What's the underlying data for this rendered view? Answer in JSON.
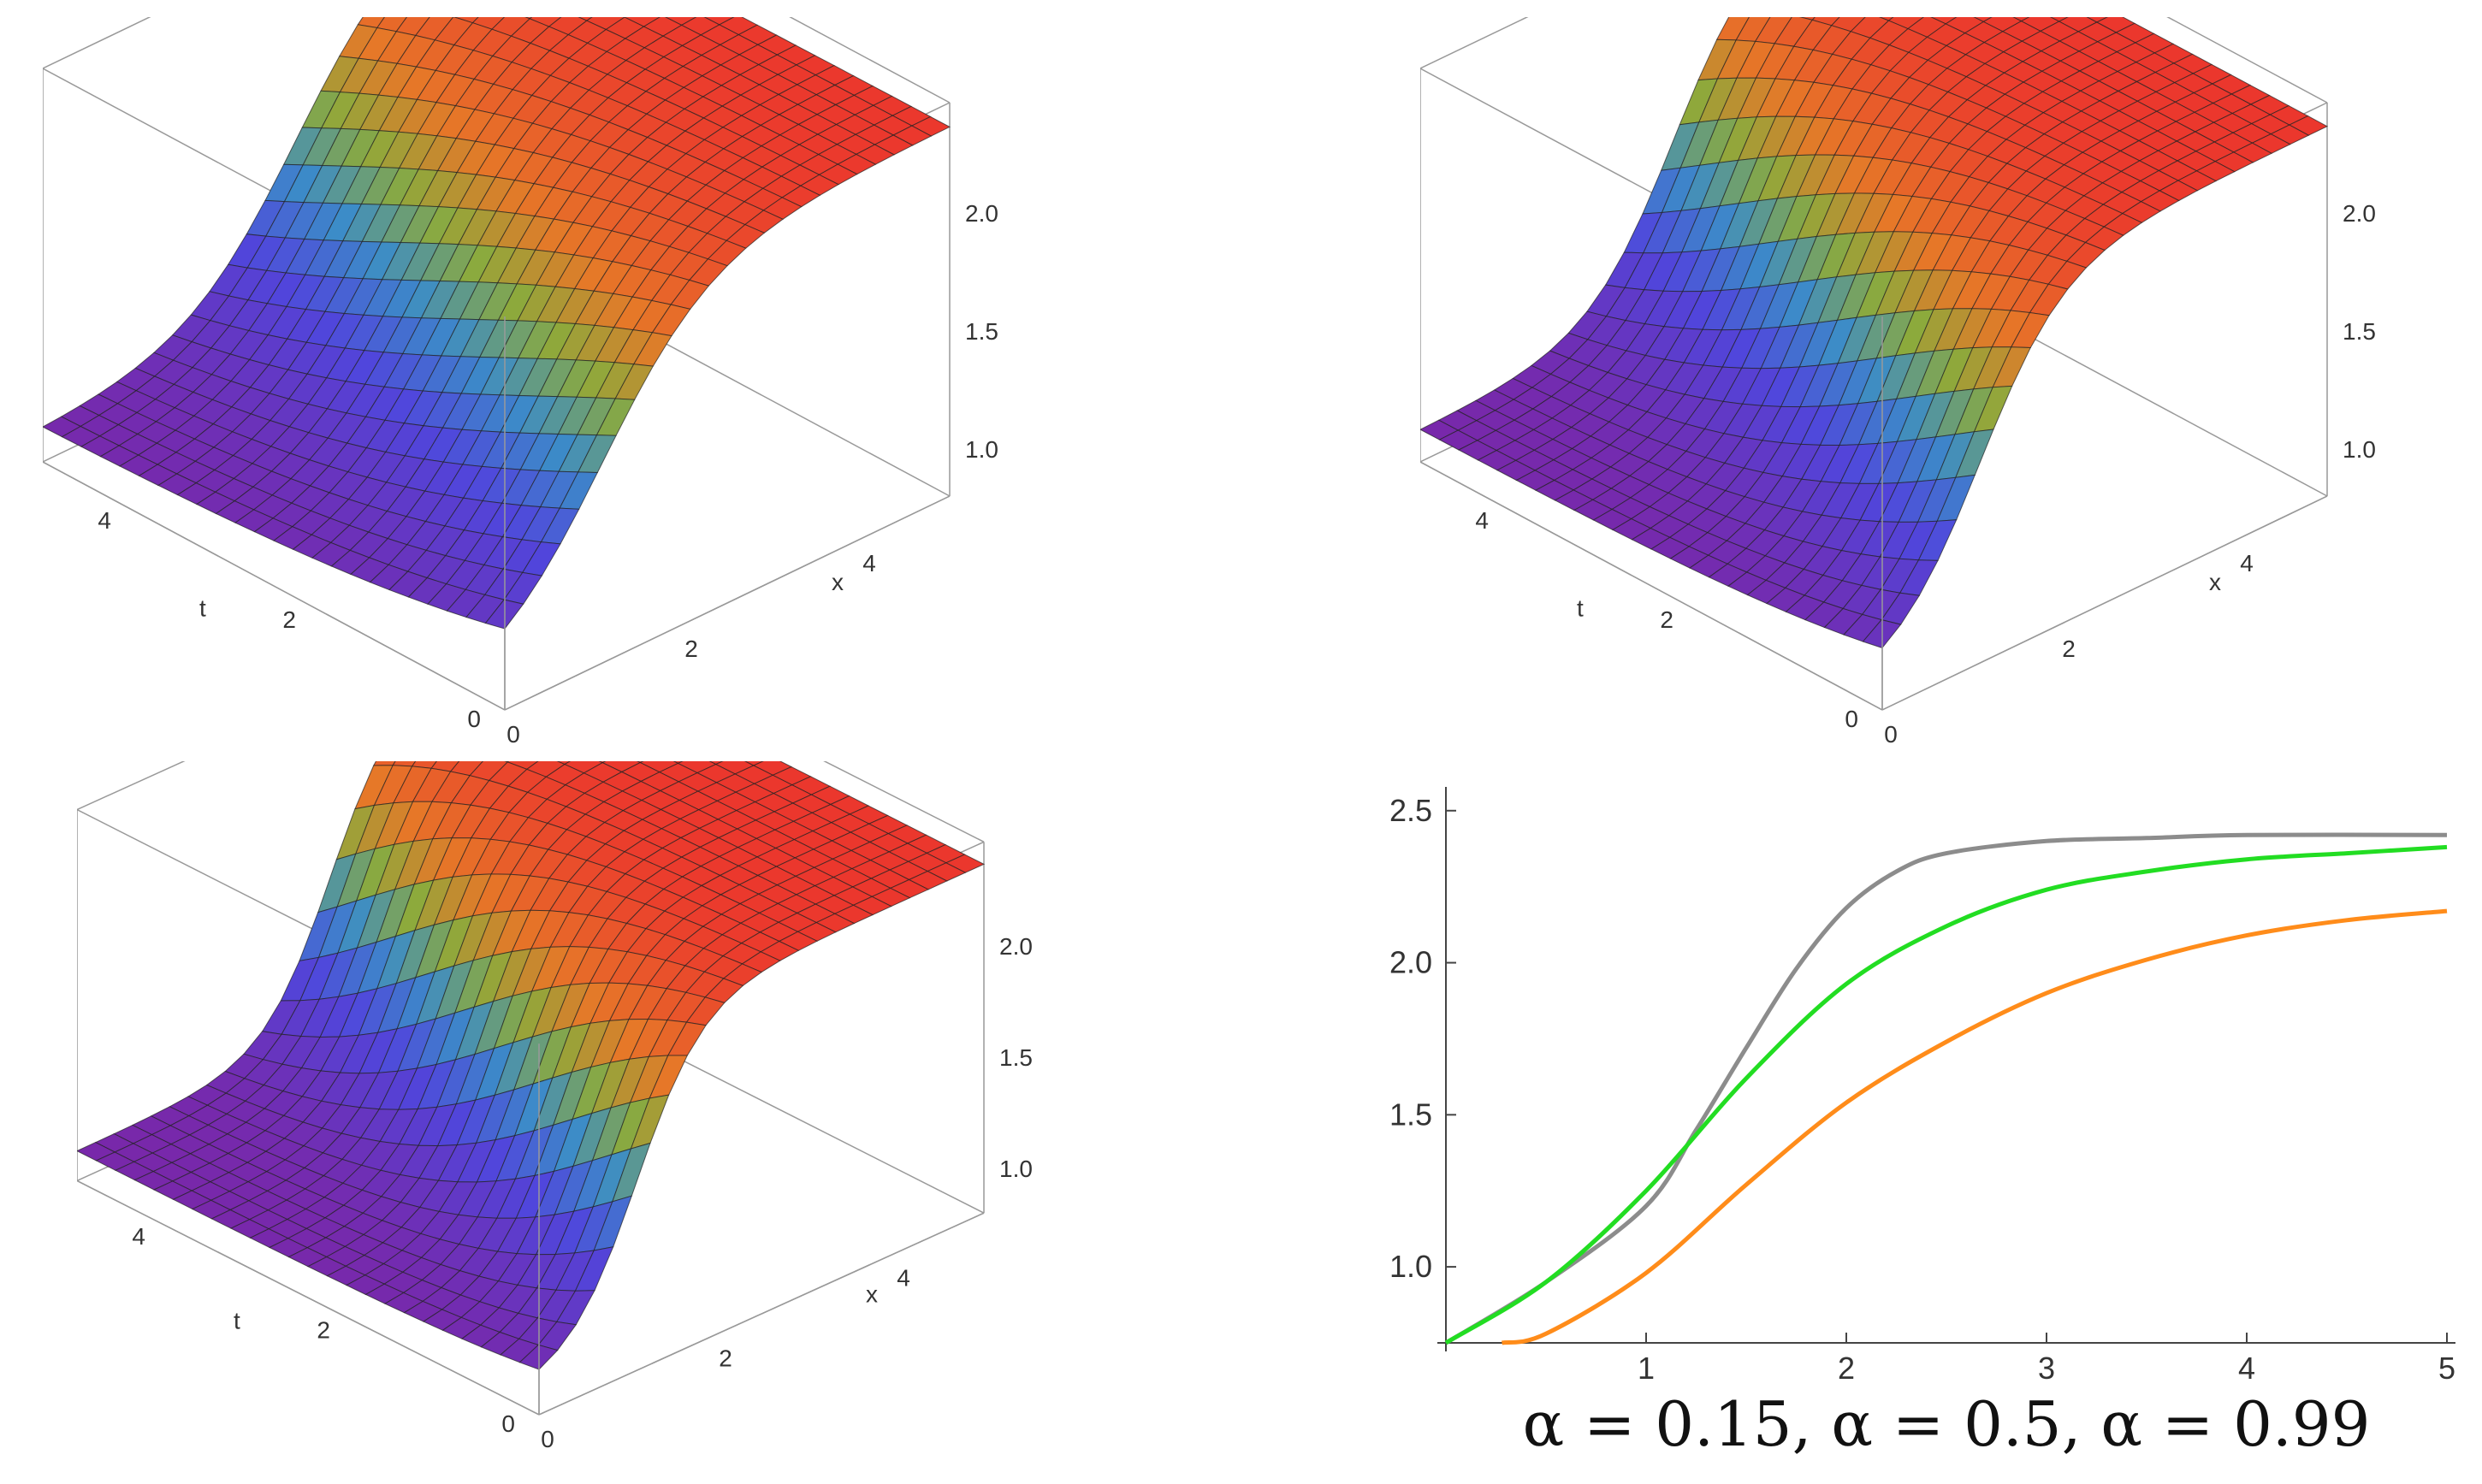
{
  "surfaces": [
    {
      "id": "top-left",
      "x_ticks": [
        "0",
        "2",
        "4"
      ],
      "t_ticks": [
        "0",
        "2",
        "4"
      ],
      "z_ticks": [
        "1.0",
        "1.5",
        "2.0"
      ],
      "x_label": "x",
      "t_label": "t"
    },
    {
      "id": "top-right",
      "x_ticks": [
        "0",
        "2",
        "4"
      ],
      "t_ticks": [
        "0",
        "2",
        "4"
      ],
      "z_ticks": [
        "1.0",
        "1.5",
        "2.0"
      ],
      "x_label": "x",
      "t_label": "t"
    },
    {
      "id": "bottom-left",
      "x_ticks": [
        "0",
        "2",
        "4"
      ],
      "t_ticks": [
        "0",
        "2",
        "4"
      ],
      "z_ticks": [
        "1.0",
        "1.5",
        "2.0"
      ],
      "x_label": "x",
      "t_label": "t"
    }
  ],
  "chart_data": {
    "type": "line",
    "x_ticks": [
      "1",
      "2",
      "3",
      "4",
      "5"
    ],
    "y_ticks": [
      "1.0",
      "1.5",
      "2.0",
      "2.5"
    ],
    "xlim": [
      0,
      5
    ],
    "ylim": [
      0.75,
      2.55
    ],
    "series": [
      {
        "color": "#8c8c8c",
        "x": [
          0,
          0.5,
          1.0,
          1.25,
          1.5,
          1.75,
          2.0,
          2.25,
          2.5,
          3.0,
          3.5,
          4.0,
          5.0
        ],
        "y": [
          0.75,
          0.95,
          1.2,
          1.45,
          1.72,
          1.98,
          2.18,
          2.3,
          2.36,
          2.4,
          2.41,
          2.42,
          2.42
        ]
      },
      {
        "color": "#22dd22",
        "x": [
          0,
          0.5,
          1.0,
          1.5,
          2.0,
          2.5,
          3.0,
          3.5,
          4.0,
          4.5,
          5.0
        ],
        "y": [
          0.75,
          0.95,
          1.25,
          1.62,
          1.93,
          2.12,
          2.24,
          2.3,
          2.34,
          2.36,
          2.38
        ]
      },
      {
        "color": "#ff8c1a",
        "x": [
          0.28,
          0.5,
          1.0,
          1.5,
          2.0,
          2.5,
          3.0,
          3.5,
          4.0,
          4.5,
          5.0
        ],
        "y": [
          0.75,
          0.78,
          0.98,
          1.27,
          1.54,
          1.74,
          1.9,
          2.01,
          2.09,
          2.14,
          2.17
        ]
      }
    ],
    "caption": "α = 0.15, α = 0.5, α = 0.99"
  }
}
